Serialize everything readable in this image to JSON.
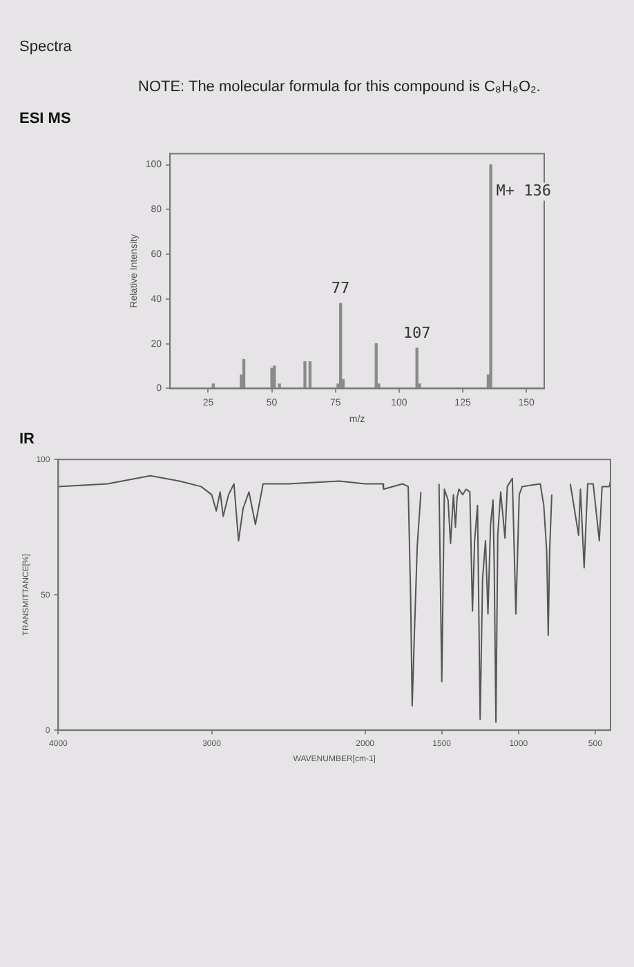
{
  "chart_data": [
    {
      "type": "bar",
      "title": "ESI MS",
      "annotations": [
        "Spectra",
        "NOTE: The molecular formula for this compound is C₈H₈O₂.",
        {
          "text": "77",
          "x": 77,
          "y": 38
        },
        {
          "text": "107",
          "x": 107,
          "y": 18
        },
        {
          "text": "M+ 136",
          "x": 136,
          "y": 100
        }
      ],
      "xlabel": "m/z",
      "ylabel": "Relative Intensity",
      "x": [
        27,
        38,
        39,
        50,
        51,
        53,
        63,
        65,
        76,
        77,
        78,
        91,
        92,
        107,
        108,
        135,
        136
      ],
      "values": [
        2,
        6,
        13,
        9,
        10,
        2,
        12,
        12,
        2,
        38,
        4,
        20,
        2,
        18,
        2,
        6,
        100
      ],
      "color": "#8a8a8a",
      "xlim": [
        10,
        157
      ],
      "xticks": [
        25,
        50,
        75,
        100,
        125,
        150
      ],
      "ylim": [
        0,
        105
      ],
      "yticks": [
        0,
        20,
        40,
        60,
        80,
        100
      ],
      "grid": false,
      "legend": false
    },
    {
      "type": "line",
      "title": "IR",
      "xlabel": "WAVENUMBER[cm-1]",
      "ylabel": "TRANSMITTANCE[%]",
      "x": [
        4000,
        3680,
        3400,
        3210,
        3070,
        3000,
        2970,
        2945,
        2925,
        2890,
        2855,
        2825,
        2795,
        2757,
        2715,
        2665,
        2500,
        2170,
        2000,
        1884,
        1880,
        1755,
        1719,
        1703,
        1693,
        1679,
        1660,
        1636,
        1620,
        1518,
        1500,
        1483,
        1459,
        1443,
        1424,
        1411,
        1400,
        1388,
        1364,
        1341,
        1317,
        1300,
        1286,
        1267,
        1250,
        1234,
        1215,
        1199,
        1182,
        1166,
        1158,
        1147,
        1135,
        1116,
        1088,
        1073,
        1040,
        1017,
        995,
        976,
        858,
        835,
        816,
        806,
        797,
        783,
        720,
        662,
        608,
        596,
        572,
        549,
        513,
        473,
        455,
        408,
        400
      ],
      "values": [
        90,
        91,
        94,
        92,
        90,
        87,
        81,
        88,
        79,
        87,
        91,
        70,
        82,
        88,
        76,
        91,
        91,
        92,
        91,
        91,
        89,
        91,
        90,
        49,
        9,
        35,
        68,
        88,
        null,
        91,
        18,
        89,
        85,
        69,
        87,
        75,
        86,
        89,
        87,
        89,
        88,
        44,
        70,
        83,
        4,
        56,
        70,
        43,
        76,
        85,
        60,
        3,
        72,
        88,
        71,
        90,
        93,
        43,
        87,
        90,
        91,
        83,
        66,
        35,
        66,
        87,
        null,
        91,
        72,
        89,
        60,
        91,
        91,
        70,
        90,
        90,
        92
      ],
      "color": "#555555",
      "xlim": [
        4000,
        400
      ],
      "xticks": [
        4000,
        3000,
        2000,
        1500,
        1000,
        500
      ],
      "ylim": [
        0,
        100
      ],
      "yticks": [
        0,
        50,
        100
      ],
      "grid": false,
      "legend": false,
      "marker": "none",
      "line_style": "solid"
    }
  ]
}
